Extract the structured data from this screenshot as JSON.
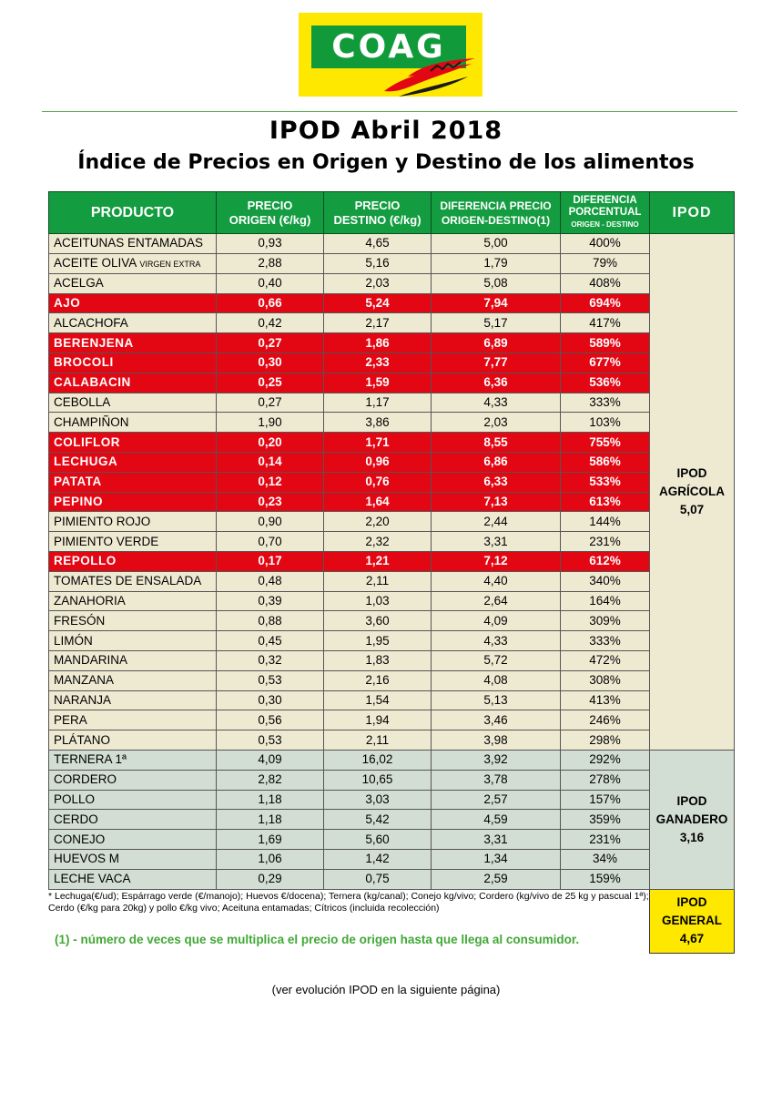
{
  "logo": {
    "text": "COAG",
    "brand_green": "#119a3a",
    "brand_yellow": "#ffe800",
    "accent_red": "#e30613"
  },
  "title": "IPOD Abril 2018",
  "subtitle": "Índice de Precios en Origen y Destino de los alimentos",
  "table": {
    "headers": {
      "producto": "PRODUCTO",
      "origen_1": "PRECIO",
      "origen_2": "ORIGEN (€/kg)",
      "destino_1": "PRECIO",
      "destino_2": "DESTINO (€/kg)",
      "diferencia_1": "DIFERENCIA PRECIO",
      "diferencia_2": "ORIGEN-DESTINO(1)",
      "porcentual_1": "DIFERENCIA",
      "porcentual_2": "PORCENTUAL",
      "porcentual_3": "ORIGEN - DESTINO",
      "ipod": "IPOD"
    },
    "agricola_rows": [
      {
        "producto": "ACEITUNAS ENTAMADAS",
        "origen": "0,93",
        "destino": "4,65",
        "diferencia": "5,00",
        "porcentual": "400%",
        "highlight": false
      },
      {
        "producto": "ACEITE OLIVA",
        "suffix": "VIRGEN EXTRA",
        "origen": "2,88",
        "destino": "5,16",
        "diferencia": "1,79",
        "porcentual": "79%",
        "highlight": false
      },
      {
        "producto": "ACELGA",
        "origen": "0,40",
        "destino": "2,03",
        "diferencia": "5,08",
        "porcentual": "408%",
        "highlight": false
      },
      {
        "producto": "AJO",
        "origen": "0,66",
        "destino": "5,24",
        "diferencia": "7,94",
        "porcentual": "694%",
        "highlight": true
      },
      {
        "producto": "ALCACHOFA",
        "origen": "0,42",
        "destino": "2,17",
        "diferencia": "5,17",
        "porcentual": "417%",
        "highlight": false
      },
      {
        "producto": "BERENJENA",
        "origen": "0,27",
        "destino": "1,86",
        "diferencia": "6,89",
        "porcentual": "589%",
        "highlight": true
      },
      {
        "producto": "BROCOLI",
        "origen": "0,30",
        "destino": "2,33",
        "diferencia": "7,77",
        "porcentual": "677%",
        "highlight": true
      },
      {
        "producto": "CALABACIN",
        "origen": "0,25",
        "destino": "1,59",
        "diferencia": "6,36",
        "porcentual": "536%",
        "highlight": true
      },
      {
        "producto": "CEBOLLA",
        "origen": "0,27",
        "destino": "1,17",
        "diferencia": "4,33",
        "porcentual": "333%",
        "highlight": false
      },
      {
        "producto": "CHAMPIÑON",
        "origen": "1,90",
        "destino": "3,86",
        "diferencia": "2,03",
        "porcentual": "103%",
        "highlight": false
      },
      {
        "producto": "COLIFLOR",
        "origen": "0,20",
        "destino": "1,71",
        "diferencia": "8,55",
        "porcentual": "755%",
        "highlight": true
      },
      {
        "producto": "LECHUGA",
        "origen": "0,14",
        "destino": "0,96",
        "diferencia": "6,86",
        "porcentual": "586%",
        "highlight": true
      },
      {
        "producto": "PATATA",
        "origen": "0,12",
        "destino": "0,76",
        "diferencia": "6,33",
        "porcentual": "533%",
        "highlight": true
      },
      {
        "producto": "PEPINO",
        "origen": "0,23",
        "destino": "1,64",
        "diferencia": "7,13",
        "porcentual": "613%",
        "highlight": true
      },
      {
        "producto": "PIMIENTO ROJO",
        "origen": "0,90",
        "destino": "2,20",
        "diferencia": "2,44",
        "porcentual": "144%",
        "highlight": false
      },
      {
        "producto": "PIMIENTO VERDE",
        "origen": "0,70",
        "destino": "2,32",
        "diferencia": "3,31",
        "porcentual": "231%",
        "highlight": false
      },
      {
        "producto": "REPOLLO",
        "origen": "0,17",
        "destino": "1,21",
        "diferencia": "7,12",
        "porcentual": "612%",
        "highlight": true
      },
      {
        "producto": "TOMATES DE ENSALADA",
        "origen": "0,48",
        "destino": "2,11",
        "diferencia": "4,40",
        "porcentual": "340%",
        "highlight": false
      },
      {
        "producto": "ZANAHORIA",
        "origen": "0,39",
        "destino": "1,03",
        "diferencia": "2,64",
        "porcentual": "164%",
        "highlight": false
      },
      {
        "producto": "FRESÓN",
        "origen": "0,88",
        "destino": "3,60",
        "diferencia": "4,09",
        "porcentual": "309%",
        "highlight": false
      },
      {
        "producto": "LIMÓN",
        "origen": "0,45",
        "destino": "1,95",
        "diferencia": "4,33",
        "porcentual": "333%",
        "highlight": false
      },
      {
        "producto": "MANDARINA",
        "origen": "0,32",
        "destino": "1,83",
        "diferencia": "5,72",
        "porcentual": "472%",
        "highlight": false
      },
      {
        "producto": "MANZANA",
        "origen": "0,53",
        "destino": "2,16",
        "diferencia": "4,08",
        "porcentual": "308%",
        "highlight": false
      },
      {
        "producto": "NARANJA",
        "origen": "0,30",
        "destino": "1,54",
        "diferencia": "5,13",
        "porcentual": "413%",
        "highlight": false
      },
      {
        "producto": "PERA",
        "origen": "0,56",
        "destino": "1,94",
        "diferencia": "3,46",
        "porcentual": "246%",
        "highlight": false
      },
      {
        "producto": "PLÁTANO",
        "origen": "0,53",
        "destino": "2,11",
        "diferencia": "3,98",
        "porcentual": "298%",
        "highlight": false
      }
    ],
    "ganadero_rows": [
      {
        "producto": "TERNERA 1ª",
        "origen": "4,09",
        "destino": "16,02",
        "diferencia": "3,92",
        "porcentual": "292%",
        "highlight": false
      },
      {
        "producto": "CORDERO",
        "origen": "2,82",
        "destino": "10,65",
        "diferencia": "3,78",
        "porcentual": "278%",
        "highlight": false
      },
      {
        "producto": "POLLO",
        "origen": "1,18",
        "destino": "3,03",
        "diferencia": "2,57",
        "porcentual": "157%",
        "highlight": false
      },
      {
        "producto": "CERDO",
        "origen": "1,18",
        "destino": "5,42",
        "diferencia": "4,59",
        "porcentual": "359%",
        "highlight": false
      },
      {
        "producto": "CONEJO",
        "origen": "1,69",
        "destino": "5,60",
        "diferencia": "3,31",
        "porcentual": "231%",
        "highlight": false
      },
      {
        "producto": "HUEVOS M",
        "origen": "1,06",
        "destino": "1,42",
        "diferencia": "1,34",
        "porcentual": "34%",
        "highlight": false
      },
      {
        "producto": "LECHE VACA",
        "origen": "0,29",
        "destino": "0,75",
        "diferencia": "2,59",
        "porcentual": "159%",
        "highlight": false
      }
    ],
    "ipod_agricola": {
      "line1": "IPOD",
      "line2": "AGRÍCOLA",
      "value": "5,07"
    },
    "ipod_ganadero": {
      "line1": "IPOD",
      "line2": "GANADERO",
      "value": "3,16"
    },
    "ipod_general": {
      "line1": "IPOD",
      "line2": "GENERAL",
      "value": "4,67"
    }
  },
  "footnote": "* Lechuga(€/ud); Espárrago verde (€/manojo); Huevos €/docena); Ternera (kg/canal); Conejo kg/vivo; Cordero (kg/vivo de 25 kg y pascual 1ª); Cerdo (€/kg para 20kg) y pollo €/kg vivo; Aceituna entamadas; Cítricos (incluida recolección)",
  "legend": "(1) - número de veces que se multiplica el precio de origen hasta que llega al consumidor.",
  "footer": "(ver evolución IPOD en la siguiente página)"
}
